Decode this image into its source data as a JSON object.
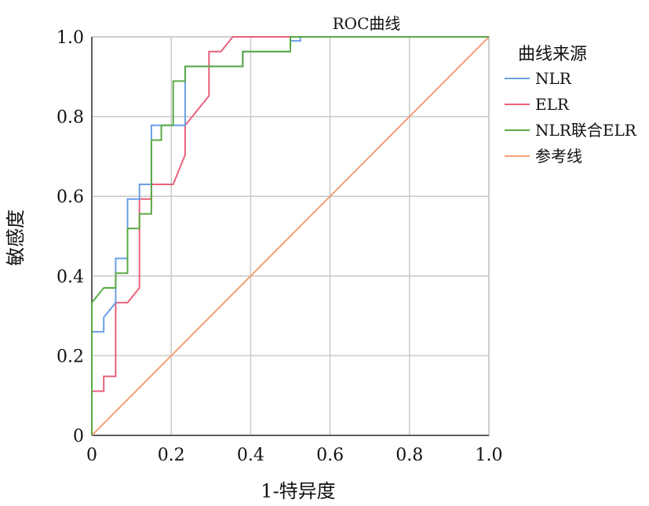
{
  "chart_data": {
    "type": "line",
    "title": "ROC曲线",
    "xlabel": "1-特异度",
    "ylabel": "敏感度",
    "xlim": [
      0,
      1
    ],
    "ylim": [
      0,
      1
    ],
    "grid": true,
    "legend_position": "right",
    "x_ticks": [
      0,
      0.2,
      0.4,
      0.6,
      0.8,
      1.0
    ],
    "x_tick_labels": [
      "0",
      "0.2",
      "0.4",
      "0.6",
      "0.8",
      "1.0"
    ],
    "y_ticks": [
      0,
      0.2,
      0.4,
      0.6,
      0.8,
      1.0
    ],
    "y_tick_labels": [
      "0",
      "0.2",
      "0.4",
      "0.6",
      "0.8",
      "1.0"
    ],
    "legend_title": "曲线来源",
    "series": [
      {
        "name": "NLR",
        "color": "#6a9fe6",
        "points": [
          [
            0,
            0
          ],
          [
            0,
            0.26
          ],
          [
            0.03,
            0.26
          ],
          [
            0.03,
            0.296
          ],
          [
            0.06,
            0.333
          ],
          [
            0.06,
            0.37
          ],
          [
            0.06,
            0.444
          ],
          [
            0.09,
            0.444
          ],
          [
            0.09,
            0.593
          ],
          [
            0.12,
            0.593
          ],
          [
            0.12,
            0.63
          ],
          [
            0.15,
            0.63
          ],
          [
            0.15,
            0.778
          ],
          [
            0.235,
            0.778
          ],
          [
            0.235,
            0.926
          ],
          [
            0.38,
            0.926
          ],
          [
            0.38,
            0.963
          ],
          [
            0.5,
            0.963
          ],
          [
            0.5,
            0.99
          ],
          [
            0.525,
            0.99
          ],
          [
            0.525,
            1.0
          ],
          [
            1.0,
            1.0
          ]
        ]
      },
      {
        "name": "ELR",
        "color": "#e8607a",
        "points": [
          [
            0,
            0
          ],
          [
            0,
            0.111
          ],
          [
            0.03,
            0.111
          ],
          [
            0.03,
            0.148
          ],
          [
            0.06,
            0.148
          ],
          [
            0.06,
            0.333
          ],
          [
            0.09,
            0.333
          ],
          [
            0.12,
            0.37
          ],
          [
            0.12,
            0.593
          ],
          [
            0.15,
            0.593
          ],
          [
            0.15,
            0.63
          ],
          [
            0.205,
            0.63
          ],
          [
            0.235,
            0.704
          ],
          [
            0.235,
            0.778
          ],
          [
            0.295,
            0.852
          ],
          [
            0.295,
            0.963
          ],
          [
            0.325,
            0.963
          ],
          [
            0.355,
            1.0
          ],
          [
            1.0,
            1.0
          ]
        ]
      },
      {
        "name": "NLR联合ELR",
        "color": "#5aaa44",
        "points": [
          [
            0,
            0
          ],
          [
            0,
            0.333
          ],
          [
            0.03,
            0.37
          ],
          [
            0.06,
            0.37
          ],
          [
            0.06,
            0.407
          ],
          [
            0.09,
            0.407
          ],
          [
            0.09,
            0.519
          ],
          [
            0.12,
            0.519
          ],
          [
            0.12,
            0.556
          ],
          [
            0.15,
            0.556
          ],
          [
            0.15,
            0.741
          ],
          [
            0.175,
            0.741
          ],
          [
            0.175,
            0.778
          ],
          [
            0.205,
            0.778
          ],
          [
            0.205,
            0.889
          ],
          [
            0.235,
            0.889
          ],
          [
            0.235,
            0.926
          ],
          [
            0.38,
            0.926
          ],
          [
            0.38,
            0.963
          ],
          [
            0.5,
            0.963
          ],
          [
            0.5,
            1.0
          ],
          [
            1.0,
            1.0
          ]
        ]
      },
      {
        "name": "参考线",
        "color": "#f2a078",
        "points": [
          [
            0,
            0
          ],
          [
            1,
            1
          ]
        ]
      }
    ]
  }
}
